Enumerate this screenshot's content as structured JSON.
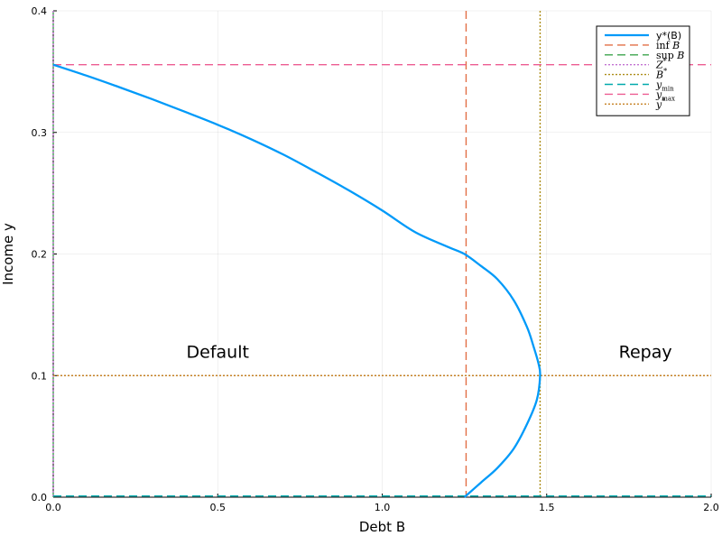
{
  "chart_data": {
    "type": "line",
    "xlabel": "Debt B",
    "ylabel": "Income y",
    "xlim": [
      0,
      2
    ],
    "ylim": [
      0,
      0.4
    ],
    "xticks": [
      0,
      0.5,
      1.0,
      1.5,
      2.0
    ],
    "xtick_labels": [
      "0.0",
      "0.5",
      "1.0",
      "1.5",
      "2.0"
    ],
    "yticks": [
      0,
      0.1,
      0.2,
      0.3,
      0.4
    ],
    "ytick_labels": [
      "0.0",
      "0.1",
      "0.2",
      "0.3",
      "0.4"
    ],
    "grid": true,
    "legend_position": "top-right",
    "annotations": [
      {
        "text": "Default",
        "x": 0.5,
        "y": 0.12
      },
      {
        "text": "Repay",
        "x": 1.8,
        "y": 0.12
      }
    ],
    "series": [
      {
        "name": "y*(B)",
        "kind": "curve",
        "color": "#009af9",
        "style": "solid",
        "points": [
          [
            0.0,
            0.3557
          ],
          [
            0.1,
            0.3468
          ],
          [
            0.2,
            0.3373
          ],
          [
            0.3,
            0.3274
          ],
          [
            0.4,
            0.317
          ],
          [
            0.5,
            0.3063
          ],
          [
            0.6,
            0.2946
          ],
          [
            0.7,
            0.2817
          ],
          [
            0.8,
            0.2672
          ],
          [
            0.9,
            0.2521
          ],
          [
            1.0,
            0.2358
          ],
          [
            1.1,
            0.218
          ],
          [
            1.2,
            0.2058
          ],
          [
            1.25,
            0.2
          ],
          [
            1.3,
            0.1902
          ],
          [
            1.35,
            0.1793
          ],
          [
            1.4,
            0.1619
          ],
          [
            1.44,
            0.14
          ],
          [
            1.46,
            0.124
          ],
          [
            1.475,
            0.11
          ],
          [
            1.48,
            0.1
          ],
          [
            1.47,
            0.08
          ],
          [
            1.44,
            0.06
          ],
          [
            1.4,
            0.04
          ],
          [
            1.35,
            0.024
          ],
          [
            1.3,
            0.012
          ],
          [
            1.25,
            0.0
          ]
        ]
      },
      {
        "name": "inf B",
        "kind": "vline",
        "value": 1.255,
        "color": "#e26f46",
        "style": "dashed"
      },
      {
        "name": "sup B",
        "kind": "vline",
        "value": 0.0,
        "color": "#3da44d",
        "style": "dashed"
      },
      {
        "name": "Z*",
        "kind": "vline",
        "value": 0.0,
        "color": "#c271d2",
        "style": "dotted"
      },
      {
        "name": "B*",
        "kind": "vline",
        "value": 1.48,
        "color": "#ac8d18",
        "style": "dotted"
      },
      {
        "name": "y_min",
        "kind": "hline",
        "value": 0.001,
        "color": "#00a9ad",
        "style": "dashed"
      },
      {
        "name": "y_max",
        "kind": "hline",
        "value": 0.3557,
        "color": "#ed5d92",
        "style": "dashed"
      },
      {
        "name": "y*",
        "kind": "hline",
        "value": 0.1,
        "color": "#c68125",
        "style": "dotted"
      }
    ]
  },
  "legend": {
    "entries": [
      {
        "kind": "text",
        "label": "y*(B)",
        "color": "#009af9",
        "style": "solid"
      },
      {
        "kind": "math",
        "label": "inf",
        "label_var": "B",
        "color": "#e26f46",
        "style": "dashed"
      },
      {
        "kind": "math",
        "label": "sup",
        "label_var": "B",
        "color": "#3da44d",
        "style": "dashed"
      },
      {
        "kind": "mathvar",
        "label_var": "Z",
        "sup": "*",
        "color": "#c271d2",
        "style": "dotted"
      },
      {
        "kind": "mathvar",
        "label_var": "B",
        "sup": "*",
        "color": "#ac8d18",
        "style": "dotted"
      },
      {
        "kind": "mathvar",
        "label_var": "y",
        "sub": "min",
        "color": "#00a9ad",
        "style": "dashed"
      },
      {
        "kind": "mathvar",
        "label_var": "y",
        "sub": "max",
        "color": "#ed5d92",
        "style": "dashed"
      },
      {
        "kind": "mathvar",
        "label_var": "y",
        "sup": "*",
        "color": "#c68125",
        "style": "dotted"
      }
    ]
  }
}
